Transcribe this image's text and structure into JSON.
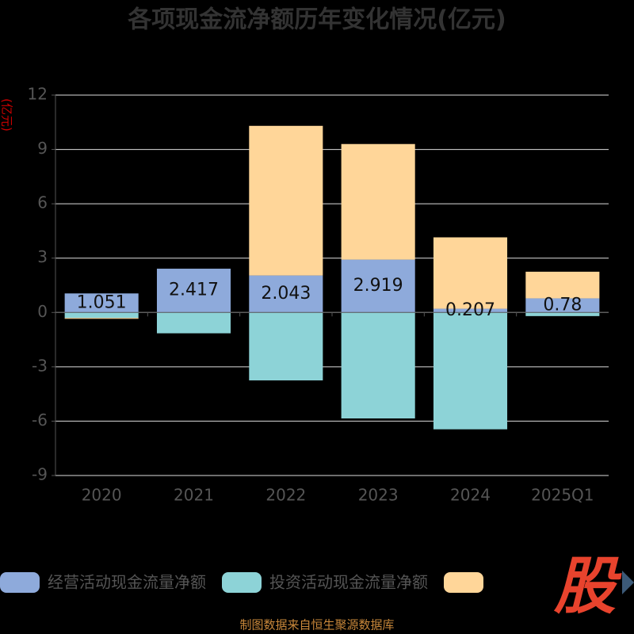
{
  "chart_data": {
    "type": "bar",
    "stacked": true,
    "title": "各项现金流净额历年变化情况(亿元)",
    "y_label": "(亿元)",
    "categories": [
      "2020",
      "2021",
      "2022",
      "2023",
      "2024",
      "2025Q1"
    ],
    "series": [
      {
        "name": "经营活动现金流量净额",
        "color": "#8eaadb",
        "values": [
          1.051,
          2.417,
          2.043,
          2.919,
          0.207,
          0.78
        ]
      },
      {
        "name": "投资活动现金流量净额",
        "color": "#8dd3d7",
        "values": [
          -0.3,
          -1.15,
          -3.75,
          -5.85,
          -6.45,
          -0.2
        ]
      },
      {
        "color": "#ffd699",
        "values": [
          -0.05,
          0,
          8.26,
          6.38,
          3.94,
          1.47
        ]
      }
    ],
    "value_label_series": 0,
    "ylim": [
      -9,
      12
    ],
    "yticks": [
      -9,
      -6,
      -3,
      0,
      3,
      6,
      9,
      12
    ],
    "grid": true,
    "source": "制图数据来自恒生聚源数据库",
    "watermark": "股"
  }
}
